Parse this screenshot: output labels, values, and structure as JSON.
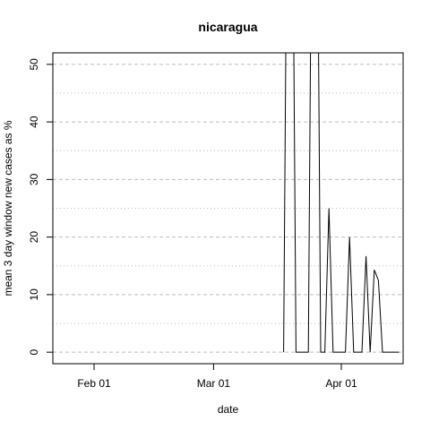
{
  "chart_data": {
    "type": "line",
    "title": "nicaragua",
    "xlabel": "date",
    "ylabel": "mean  3  day window new cases as %",
    "x_ticks": [
      "Feb 01",
      "Mar 01",
      "Apr 01"
    ],
    "y_ticks": [
      0,
      10,
      20,
      30,
      40,
      50
    ],
    "xlim": [
      "2020-01-22",
      "2020-04-16"
    ],
    "ylim": [
      -2,
      52
    ],
    "grid": "horizontal dashed major and dotted minor",
    "series_color": "#000000",
    "grid_color": "#bebebe",
    "x": [
      "2020-03-18",
      "2020-03-19",
      "2020-03-20",
      "2020-03-21",
      "2020-03-22",
      "2020-03-23",
      "2020-03-24",
      "2020-03-25",
      "2020-03-26",
      "2020-03-27",
      "2020-03-28",
      "2020-03-29",
      "2020-03-30",
      "2020-03-31",
      "2020-04-01",
      "2020-04-02",
      "2020-04-03",
      "2020-04-04",
      "2020-04-05",
      "2020-04-06",
      "2020-04-07",
      "2020-04-08",
      "2020-04-09",
      "2020-04-10",
      "2020-04-11",
      "2020-04-12",
      "2020-04-13",
      "2020-04-14",
      "2020-04-15"
    ],
    "y": [
      0,
      100,
      100,
      0,
      0,
      0,
      0,
      100,
      100,
      0,
      0,
      25,
      0,
      0,
      0,
      0,
      20,
      0,
      0,
      0,
      16.7,
      0,
      14.3,
      12.5,
      0,
      0,
      0,
      0,
      0
    ]
  }
}
